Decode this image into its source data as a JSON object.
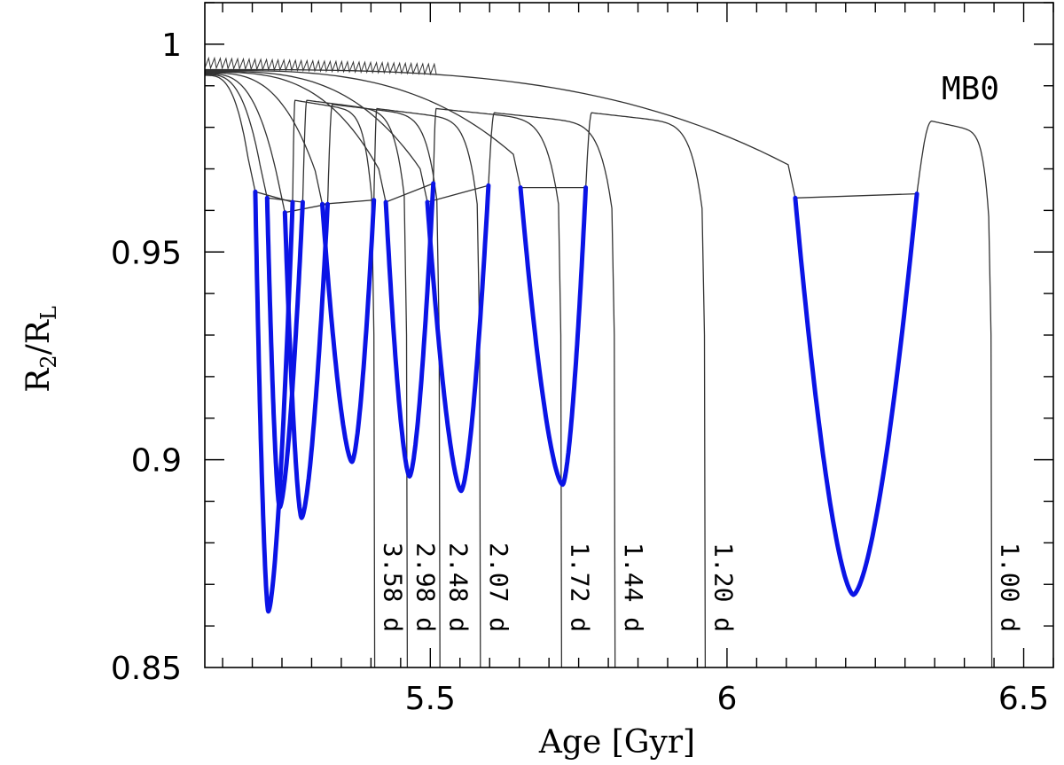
{
  "chart_data": {
    "type": "line",
    "model_label": "MB0",
    "xlabel": "Age [Gyr]",
    "ylabel_main": "R",
    "ylabel_sub1": "2",
    "ylabel_sep": "/R",
    "ylabel_sub2": "L",
    "xlim": [
      5.12,
      6.55
    ],
    "ylim": [
      0.85,
      1.01
    ],
    "x_ticks": [
      5.5,
      6,
      6.5
    ],
    "x_tick_labels": [
      "5.5",
      "6",
      "6.5"
    ],
    "y_ticks": [
      0.85,
      0.9,
      0.95,
      1
    ],
    "y_tick_labels": [
      "0.85",
      "0.9",
      "0.95",
      "1"
    ],
    "series": [
      {
        "name": "3.58 d",
        "label": "3.58 d",
        "dip_start": 5.205,
        "dip_center": 5.227,
        "dip_end": 5.268,
        "dip_start_y": 0.9645,
        "dip_min": 0.8635,
        "dip_end_y": 0.962,
        "recover_x": 5.272,
        "recover_y": 0.9865,
        "fall_x": 5.405
      },
      {
        "name": "2.98 d",
        "label": "2.98 d",
        "dip_start": 5.225,
        "dip_center": 5.246,
        "dip_end": 5.285,
        "dip_start_y": 0.963,
        "dip_min": 0.8885,
        "dip_end_y": 0.962,
        "recover_x": 5.292,
        "recover_y": 0.9865,
        "fall_x": 5.46
      },
      {
        "name": "2.48 d",
        "label": "2.48 d",
        "dip_start": 5.255,
        "dip_center": 5.283,
        "dip_end": 5.327,
        "dip_start_y": 0.9595,
        "dip_min": 0.886,
        "dip_end_y": 0.9615,
        "recover_x": 5.335,
        "recover_y": 0.9855,
        "fall_x": 5.515
      },
      {
        "name": "2.07 d",
        "label": "2.07 d",
        "dip_start": 5.318,
        "dip_center": 5.368,
        "dip_end": 5.405,
        "dip_start_y": 0.9615,
        "dip_min": 0.8995,
        "dip_end_y": 0.9625,
        "recover_x": 5.41,
        "recover_y": 0.9845,
        "fall_x": 5.583
      },
      {
        "name": "1.72 d",
        "label": "1.72 d",
        "dip_start": 5.425,
        "dip_center": 5.465,
        "dip_end": 5.505,
        "dip_start_y": 0.962,
        "dip_min": 0.896,
        "dip_end_y": 0.9665,
        "recover_x": 5.51,
        "recover_y": 0.9845,
        "fall_x": 5.72
      },
      {
        "name": "1.44 d",
        "label": "1.44 d",
        "dip_start": 5.495,
        "dip_center": 5.552,
        "dip_end": 5.598,
        "dip_start_y": 0.962,
        "dip_min": 0.8925,
        "dip_end_y": 0.966,
        "recover_x": 5.608,
        "recover_y": 0.9835,
        "fall_x": 5.81
      },
      {
        "name": "1.20 d",
        "label": "1.20 d",
        "dip_start": 5.652,
        "dip_center": 5.723,
        "dip_end": 5.762,
        "dip_start_y": 0.9655,
        "dip_min": 0.894,
        "dip_end_y": 0.9655,
        "recover_x": 5.772,
        "recover_y": 0.9835,
        "fall_x": 5.962
      },
      {
        "name": "1.00 d",
        "label": "1.00 d",
        "dip_start": 6.115,
        "dip_center": 6.213,
        "dip_end": 6.32,
        "dip_start_y": 0.963,
        "dip_min": 0.8675,
        "dip_end_y": 0.964,
        "recover_x": 6.345,
        "recover_y": 0.9815,
        "fall_x": 6.445
      }
    ],
    "colors": {
      "line": "#333333",
      "dip": "#0b14e6",
      "axis": "#000000"
    }
  }
}
